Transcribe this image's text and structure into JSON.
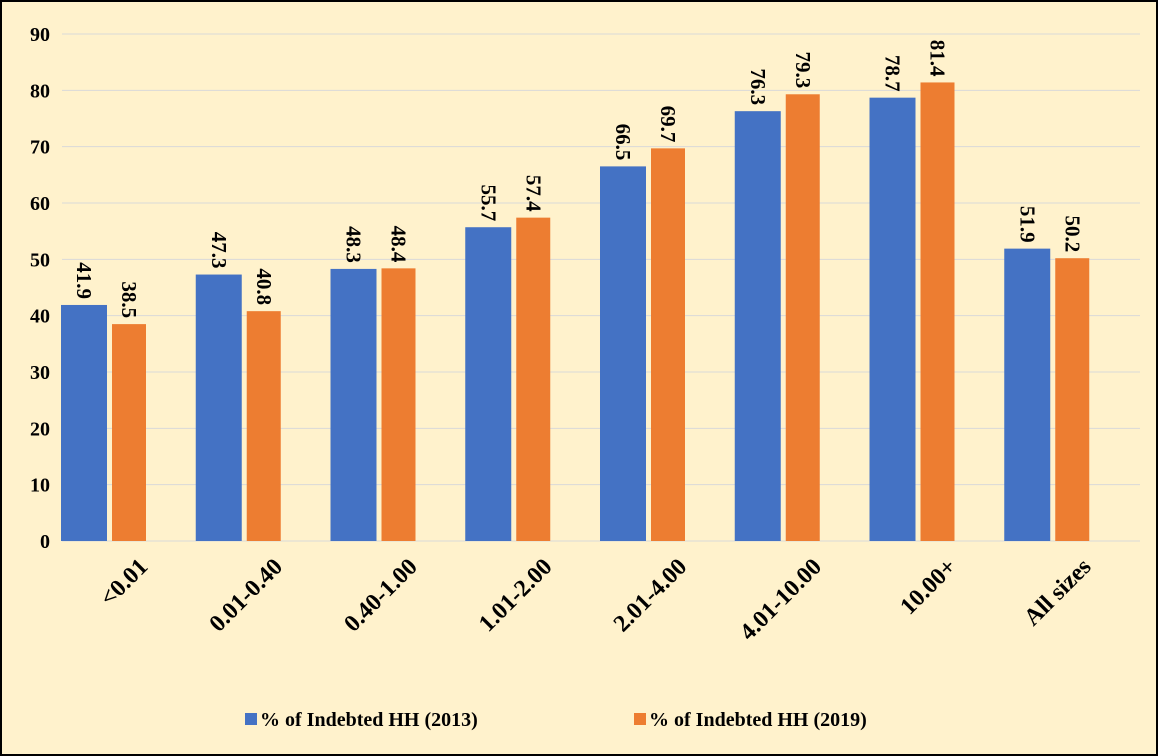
{
  "chart_data": {
    "type": "bar",
    "categories": [
      "<0.01",
      "0.01-0.40",
      "0.40-1.00",
      "1.01-2.00",
      "2.01-4.00",
      "4.01-10.00",
      "10.00+",
      "All sizes"
    ],
    "series": [
      {
        "name": "% of Indebted HH (2013)",
        "color": "#4472c4",
        "values": [
          41.9,
          47.3,
          48.3,
          55.7,
          66.5,
          76.3,
          78.7,
          51.9
        ]
      },
      {
        "name": "% of Indebted HH (2019)",
        "color": "#ed7d31",
        "values": [
          38.5,
          40.8,
          48.4,
          57.4,
          69.7,
          79.3,
          81.4,
          50.2
        ]
      }
    ],
    "ylim": [
      0,
      90
    ],
    "yticks": [
      0,
      10,
      20,
      30,
      40,
      50,
      60,
      70,
      80,
      90
    ],
    "grid": true,
    "legend": "bottom"
  }
}
